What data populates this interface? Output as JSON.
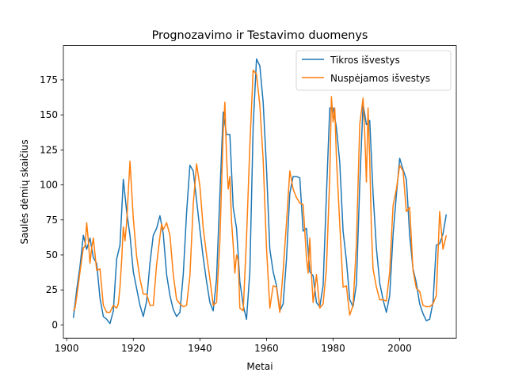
{
  "chart_data": {
    "type": "line",
    "title": "Prognozavimo ir Testavimo duomenys",
    "xlabel": "Metai",
    "ylabel": "Saulės dėmių skaičius",
    "xlim": [
      1899,
      2017
    ],
    "ylim": [
      -9.5,
      199.5
    ],
    "xticks": [
      1900,
      1920,
      1940,
      1960,
      1980,
      2000
    ],
    "yticks": [
      0,
      25,
      50,
      75,
      100,
      125,
      150,
      175
    ],
    "grid": false,
    "legend": "top-right",
    "series": [
      {
        "name": "Tikros išvestys",
        "color": "#1f77b4",
        "x": [
          1902,
          1903,
          1904,
          1905,
          1906,
          1907,
          1908,
          1909,
          1910,
          1911,
          1912,
          1913,
          1914,
          1915,
          1916,
          1917,
          1918,
          1919,
          1920,
          1921,
          1922,
          1923,
          1924,
          1925,
          1926,
          1927,
          1928,
          1929,
          1930,
          1931,
          1932,
          1933,
          1934,
          1935,
          1936,
          1937,
          1938,
          1939,
          1940,
          1941,
          1942,
          1943,
          1944,
          1945,
          1946,
          1947,
          1948,
          1949,
          1950,
          1951,
          1952,
          1953,
          1954,
          1955,
          1956,
          1957,
          1958,
          1959,
          1960,
          1961,
          1962,
          1963,
          1964,
          1965,
          1966,
          1967,
          1968,
          1969,
          1970,
          1971,
          1972,
          1973,
          1974,
          1975,
          1976,
          1977,
          1978,
          1979,
          1980,
          1981,
          1982,
          1983,
          1984,
          1985,
          1986,
          1987,
          1988,
          1989,
          1990,
          1991,
          1992,
          1993,
          1994,
          1995,
          1996,
          1997,
          1998,
          1999,
          2000,
          2001,
          2002,
          2003,
          2004,
          2005,
          2006,
          2007,
          2008,
          2009,
          2010,
          2011,
          2012,
          2013,
          2014
        ],
        "y": [
          5,
          25,
          42,
          64,
          54,
          62,
          48,
          44,
          19,
          6,
          4,
          1,
          10,
          47,
          57,
          104,
          81,
          64,
          38,
          26,
          14,
          6,
          17,
          44,
          64,
          69,
          78,
          65,
          36,
          21,
          11,
          6,
          9,
          36,
          80,
          114,
          110,
          89,
          68,
          48,
          31,
          16,
          10,
          33,
          93,
          152,
          136,
          136,
          84,
          69,
          31,
          14,
          4,
          38,
          142,
          190,
          185,
          159,
          112,
          54,
          38,
          28,
          10,
          15,
          47,
          94,
          106,
          106,
          105,
          67,
          69,
          38,
          35,
          16,
          13,
          28,
          93,
          155,
          155,
          141,
          116,
          67,
          46,
          18,
          13,
          29,
          100,
          158,
          143,
          146,
          94,
          55,
          30,
          18,
          9,
          21,
          64,
          93,
          119,
          111,
          104,
          64,
          40,
          30,
          15,
          8,
          3,
          4,
          16,
          57,
          58,
          65,
          79
        ]
      },
      {
        "name": "Nuspėjamos išvestys",
        "color": "#ff7f0e",
        "x": [
          1902,
          1902.5,
          1903,
          1904,
          1905,
          1905.5,
          1906,
          1906.5,
          1907,
          1907.5,
          1908,
          1909,
          1910,
          1911,
          1912,
          1913,
          1914,
          1915,
          1915.5,
          1916,
          1916.5,
          1917,
          1917.5,
          1918,
          1919,
          1920,
          1921,
          1922,
          1923,
          1924,
          1925,
          1926,
          1927,
          1928,
          1928.5,
          1929,
          1930,
          1931,
          1932,
          1933,
          1934,
          1935,
          1936,
          1937,
          1938,
          1939,
          1940,
          1941,
          1942,
          1943,
          1944,
          1945,
          1946,
          1947,
          1947.5,
          1948,
          1948.5,
          1949,
          1949.5,
          1950,
          1950.5,
          1951,
          1951.5,
          1952,
          1953,
          1954,
          1955,
          1956,
          1957,
          1958,
          1959,
          1960,
          1961,
          1962,
          1963,
          1964,
          1965,
          1966,
          1967,
          1968,
          1969,
          1970,
          1971,
          1972,
          1972.5,
          1973,
          1973.5,
          1974,
          1974.5,
          1975,
          1976,
          1977,
          1978,
          1979,
          1979.5,
          1980,
          1980.5,
          1981,
          1982,
          1983,
          1984,
          1984.5,
          1985,
          1986,
          1987,
          1988,
          1989,
          1989.5,
          1990,
          1990.5,
          1991,
          1991.5,
          1992,
          1993,
          1994,
          1995,
          1996,
          1997,
          1998,
          1999,
          2000,
          2001,
          2002,
          2003,
          2004,
          2005,
          2006,
          2007,
          2008,
          2009,
          2010,
          2011,
          2012,
          2013,
          2014
        ],
        "y": [
          10,
          12,
          20,
          38,
          55,
          56,
          73,
          60,
          44,
          55,
          62,
          39,
          40,
          14,
          9,
          9,
          14,
          12,
          15,
          27,
          46,
          70,
          60,
          73,
          117,
          76,
          49,
          33,
          22,
          22,
          14,
          14,
          43,
          63,
          72,
          68,
          73,
          64,
          36,
          18,
          15,
          13,
          14,
          35,
          86,
          115,
          99,
          69,
          50,
          33,
          14,
          16,
          60,
          138,
          159,
          120,
          97,
          106,
          74,
          57,
          37,
          50,
          46,
          12,
          10,
          62,
          128,
          182,
          179,
          157,
          118,
          55,
          12,
          28,
          27,
          9,
          39,
          73,
          110,
          97,
          91,
          87,
          86,
          48,
          37,
          62,
          36,
          16,
          25,
          36,
          12,
          15,
          40,
          106,
          163,
          145,
          155,
          119,
          72,
          27,
          28,
          17,
          7,
          14,
          58,
          143,
          162,
          137,
          102,
          155,
          118,
          69,
          40,
          27,
          18,
          18,
          17,
          38,
          85,
          97,
          114,
          110,
          81,
          84,
          39,
          26,
          24,
          14,
          13,
          13,
          15,
          21,
          81,
          54,
          64
        ]
      }
    ]
  }
}
